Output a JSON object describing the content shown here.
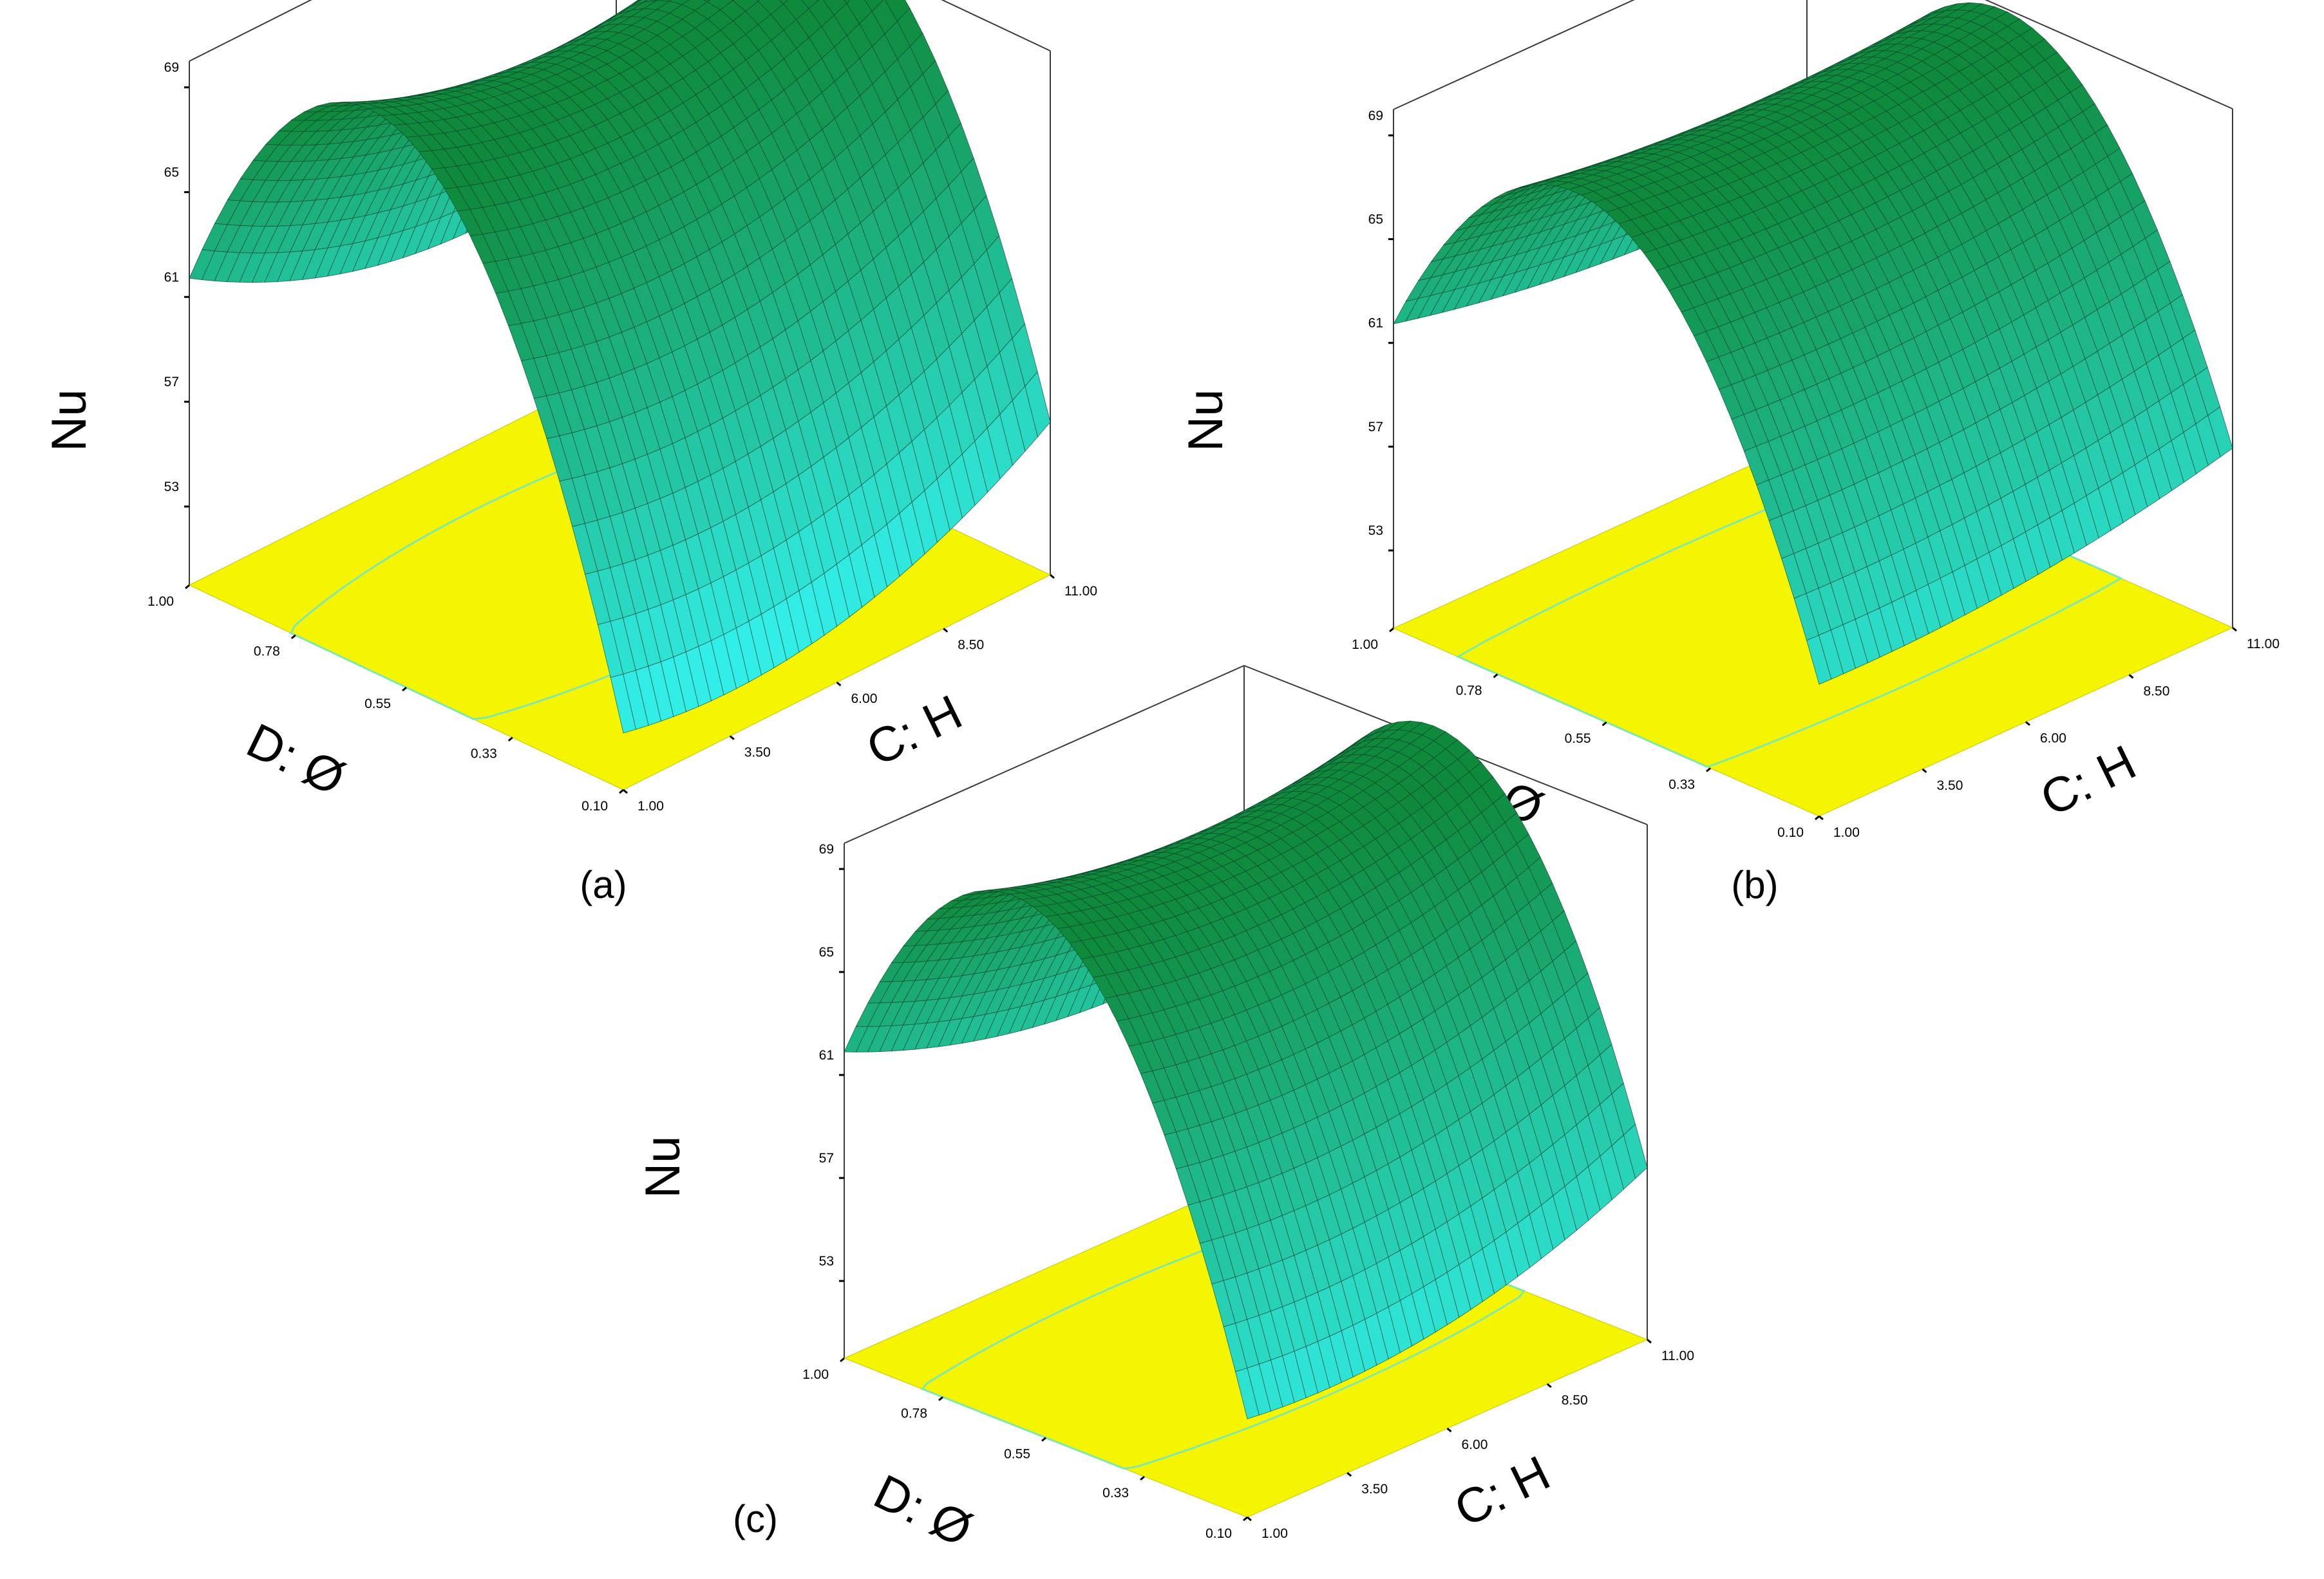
{
  "figure": {
    "panels": [
      {
        "label": "(a)"
      },
      {
        "label": "(b)"
      },
      {
        "label": "(c)"
      }
    ]
  },
  "colors": {
    "floor": "#f5f500",
    "surface_high": "#0f8a3c",
    "surface_low": "#33f2ee",
    "contour": "#7ee8b0",
    "mesh": "#0b3d2a"
  },
  "chart_data": [
    {
      "type": "surface",
      "panel": "(a)",
      "x": {
        "label": "C: H",
        "ticks": [
          "1.00",
          "3.50",
          "6.00",
          "8.50",
          "11.00"
        ],
        "range": [
          1,
          11
        ]
      },
      "y": {
        "label": "D: Ø",
        "ticks": [
          "0.10",
          "0.33",
          "0.55",
          "0.78",
          "1.00"
        ],
        "range": [
          0.1,
          1
        ]
      },
      "z": {
        "label": "Nu",
        "ticks": [
          "53",
          "57",
          "61",
          "65",
          "69"
        ],
        "range": [
          50,
          70
        ]
      },
      "corner_values": {
        "H1_phi0.1": 52,
        "H1_phi1": 61.5,
        "H11_phi0.1": 56,
        "H11_phi1": 59
      },
      "peak": {
        "H": 6,
        "phi": 0.6,
        "Nu": 69.5
      }
    },
    {
      "type": "surface",
      "panel": "(b)",
      "x": {
        "label": "C: H",
        "ticks": [
          "1.00",
          "3.50",
          "6.00",
          "8.50",
          "11.00"
        ],
        "range": [
          1,
          11
        ]
      },
      "y": {
        "label": "D: Ø",
        "ticks": [
          "0.10",
          "0.33",
          "0.55",
          "0.78",
          "1.00"
        ],
        "range": [
          0.1,
          1
        ]
      },
      "z": {
        "label": "Nu",
        "ticks": [
          "53",
          "57",
          "61",
          "65",
          "69"
        ],
        "range": [
          50,
          70
        ]
      },
      "corner_values": {
        "H1_phi0.1": 54.5,
        "H1_phi1": 61,
        "H11_phi0.1": 57.5,
        "H11_phi1": 61
      },
      "peak": {
        "H": 6,
        "phi": 0.6,
        "Nu": 69.3
      }
    },
    {
      "type": "surface",
      "panel": "(c)",
      "x": {
        "label": "C: H",
        "ticks": [
          "1.00",
          "3.50",
          "6.00",
          "8.50",
          "11.00"
        ],
        "range": [
          1,
          11
        ]
      },
      "y": {
        "label": "D: Ø",
        "ticks": [
          "0.10",
          "0.33",
          "0.55",
          "0.78",
          "1.00"
        ],
        "range": [
          0.1,
          1
        ]
      },
      "z": {
        "label": "Nu",
        "ticks": [
          "53",
          "57",
          "61",
          "65",
          "69"
        ],
        "range": [
          50,
          70
        ]
      },
      "corner_values": {
        "H1_phi0.1": 53.5,
        "H1_phi1": 61.5,
        "H11_phi0.1": 57,
        "H11_phi1": 60
      },
      "peak": {
        "H": 6,
        "phi": 0.6,
        "Nu": 69.3
      }
    }
  ]
}
